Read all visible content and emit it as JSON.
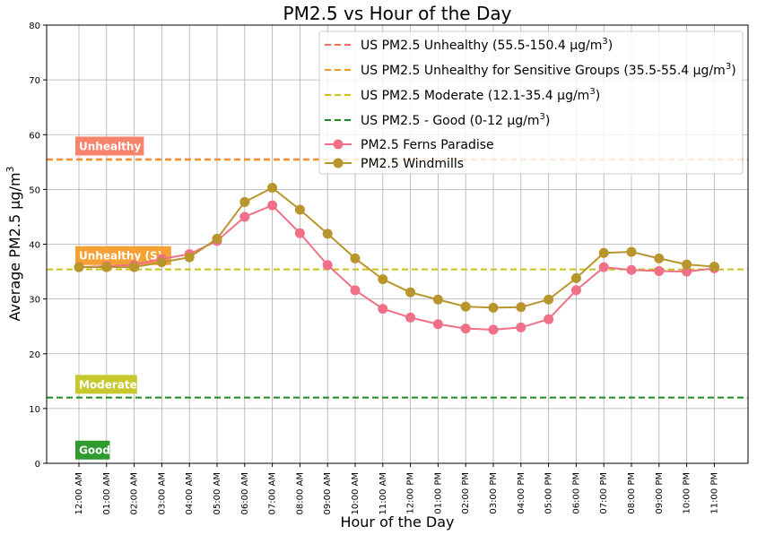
{
  "chart_data": {
    "type": "line",
    "title": "PM2.5 vs Hour of the Day",
    "xlabel": "Hour of the Day",
    "ylabel": "Average PM2.5 µg/m",
    "ylabel_sup": "3",
    "ylim": [
      0,
      80
    ],
    "yticks": [
      0,
      10,
      20,
      30,
      40,
      50,
      60,
      70,
      80
    ],
    "grid": true,
    "legend_placement": "top-right",
    "categories": [
      "12:00 AM",
      "01:00 AM",
      "02:00 AM",
      "03:00 AM",
      "04:00 AM",
      "05:00 AM",
      "06:00 AM",
      "07:00 AM",
      "08:00 AM",
      "09:00 AM",
      "10:00 AM",
      "11:00 AM",
      "12:00 PM",
      "01:00 PM",
      "02:00 PM",
      "03:00 PM",
      "04:00 PM",
      "05:00 PM",
      "06:00 PM",
      "07:00 PM",
      "08:00 PM",
      "09:00 PM",
      "10:00 PM",
      "11:00 PM"
    ],
    "series": [
      {
        "name": "PM2.5 Ferns Paradise",
        "color": "#f07088",
        "values": [
          35.8,
          36.0,
          36.2,
          37.3,
          38.2,
          40.6,
          45.0,
          47.1,
          42.0,
          36.2,
          31.6,
          28.2,
          26.6,
          25.4,
          24.6,
          24.4,
          24.8,
          26.3,
          31.6,
          35.8,
          35.3,
          35.1,
          35.0,
          35.6
        ]
      },
      {
        "name": "PM2.5 Windmills",
        "color": "#b9952e",
        "values": [
          35.8,
          35.8,
          35.8,
          36.7,
          37.6,
          41.0,
          47.7,
          50.3,
          46.3,
          41.9,
          37.4,
          33.6,
          31.2,
          29.9,
          28.6,
          28.4,
          28.5,
          29.9,
          33.8,
          38.4,
          38.6,
          37.4,
          36.3,
          35.9
        ]
      }
    ],
    "reference_lines": [
      {
        "label": "US PM2.5 Unhealthy (55.5-150.4 µg/m",
        "sup": "3",
        "close": ")",
        "value": 55.5,
        "color": "#f46d54"
      },
      {
        "label": "US PM2.5 Unhealthy for Sensitive Groups (35.5-55.4 µg/m",
        "sup": "3",
        "close": ")",
        "value": 55.4,
        "color": "#f39c26"
      },
      {
        "label": "US PM2.5 Moderate (12.1-35.4 µg/m",
        "sup": "3",
        "close": ")",
        "value": 35.4,
        "color": "#c8c21a"
      },
      {
        "label": "US PM2.5 - Good (0-12 µg/m",
        "sup": "3",
        "close": ")",
        "value": 12,
        "color": "#1f8a1f"
      }
    ],
    "zone_labels": [
      {
        "text": "Unhealthy",
        "value": 58,
        "color": "#f6836c"
      },
      {
        "text": "Unhealthy (S)",
        "value": 38,
        "color": "#f5a033"
      },
      {
        "text": "Moderate",
        "value": 14.5,
        "color": "#c6c82d"
      },
      {
        "text": "Good",
        "value": 2.5,
        "color": "#2f9b2f"
      }
    ]
  }
}
